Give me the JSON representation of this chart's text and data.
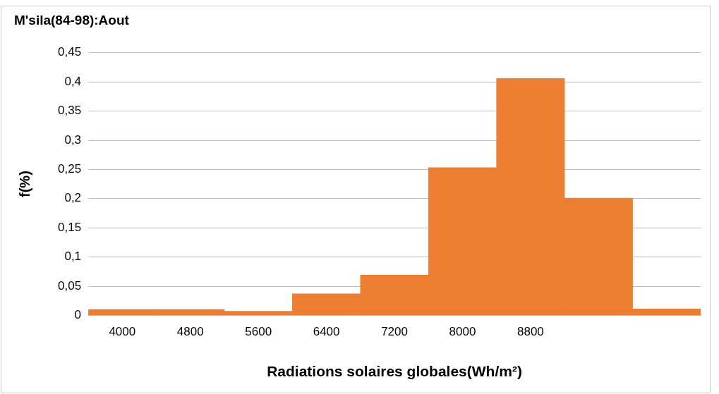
{
  "chart_data": {
    "type": "bar",
    "title": "M'sila(84-98):Aout",
    "xlabel": "Radiations solaires globales(Wh/m²)",
    "ylabel": "f(%)",
    "categories": [
      "4000",
      "4800",
      "5600",
      "6400",
      "7200",
      "8000",
      "8800",
      null,
      null
    ],
    "values": [
      0.01,
      0.01,
      0.007,
      0.037,
      0.069,
      0.253,
      0.406,
      0.201,
      0.011
    ],
    "color": "#ed7d31",
    "ylim": [
      0,
      0.45
    ],
    "yticks": [
      0,
      {
        "value": 0.05,
        "label": "0,05"
      },
      {
        "value": 0.1,
        "label": "0,1"
      },
      {
        "value": 0.15,
        "label": "0,15"
      },
      {
        "value": 0.2,
        "label": "0,2"
      },
      {
        "value": 0.25,
        "label": "0,25"
      },
      {
        "value": 0.3,
        "label": "0,3"
      },
      {
        "value": 0.35,
        "label": "0,35"
      },
      {
        "value": 0.4,
        "label": "0,4"
      },
      {
        "value": 0.45,
        "label": "0,45"
      }
    ],
    "grid": "y"
  }
}
